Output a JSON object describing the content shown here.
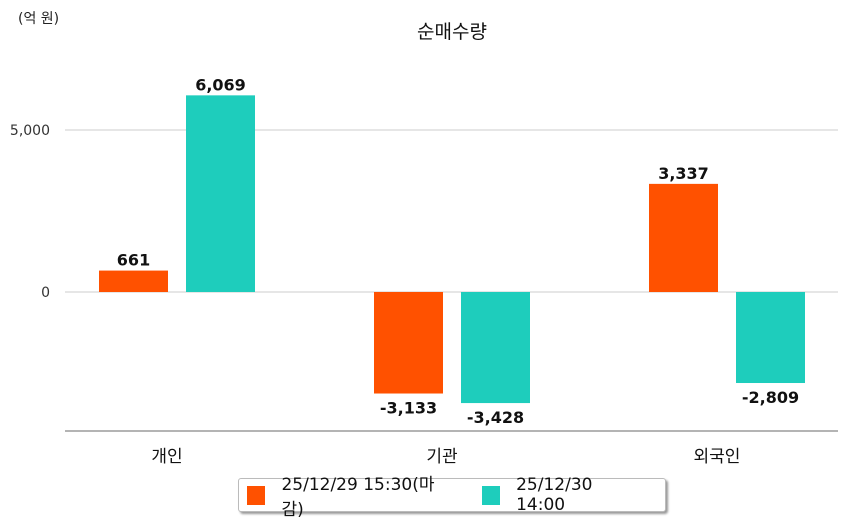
{
  "chart_data": {
    "type": "bar",
    "title": "순매수량",
    "unit_label": "(억 원)",
    "categories": [
      "개인",
      "기관",
      "외국인"
    ],
    "series": [
      {
        "name": "25/12/29 15:30(마감)",
        "color": "#FF5100",
        "values": [
          661,
          -3133,
          3337
        ],
        "labels": [
          "661",
          "-3,133",
          "3,337"
        ]
      },
      {
        "name": "25/12/30 14:00",
        "color": "#1ECDBC",
        "values": [
          6069,
          -3428,
          -2809
        ],
        "labels": [
          "6,069",
          "-3,428",
          "-2,809"
        ]
      }
    ],
    "yticks": [
      0,
      5000
    ],
    "ytick_labels": [
      "0",
      "5,000"
    ],
    "ylim": [
      -4290,
      7160
    ],
    "grid": true,
    "legend": "bottom"
  }
}
